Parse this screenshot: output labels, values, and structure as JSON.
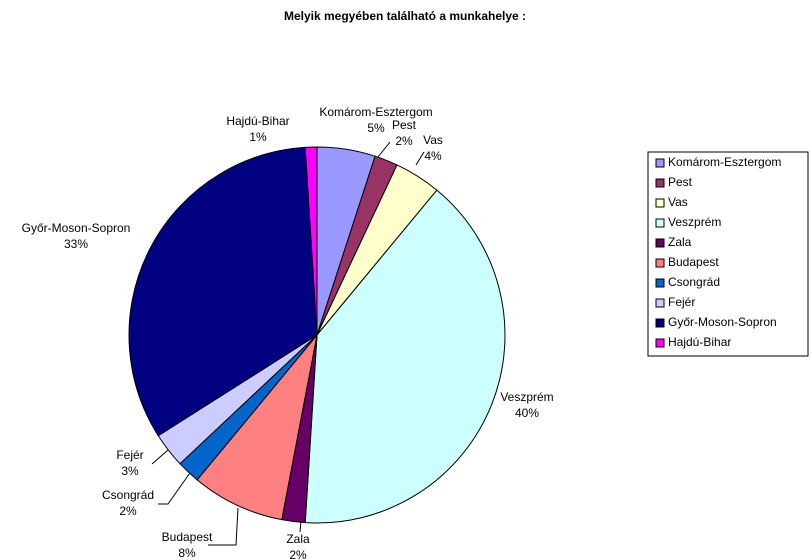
{
  "chart_data": {
    "type": "pie",
    "title": "Melyik megyében található a munkahelye :",
    "categories": [
      "Komárom-Esztergom",
      "Pest",
      "Vas",
      "Veszprém",
      "Zala",
      "Budapest",
      "Csongrád",
      "Fejér",
      "Győr-Moson-Sopron",
      "Hajdú-Bihar"
    ],
    "values": [
      5,
      2,
      4,
      40,
      2,
      8,
      2,
      3,
      33,
      1
    ],
    "value_labels": [
      "5%",
      "2%",
      "4%",
      "40%",
      "2%",
      "8%",
      "2%",
      "3%",
      "33%",
      "1%"
    ],
    "colors": [
      "#9999FF",
      "#993366",
      "#FFFFCC",
      "#CCFFFF",
      "#660066",
      "#FF8080",
      "#0066CC",
      "#CCCCFF",
      "#000080",
      "#FF00FF"
    ],
    "legend": "right"
  }
}
